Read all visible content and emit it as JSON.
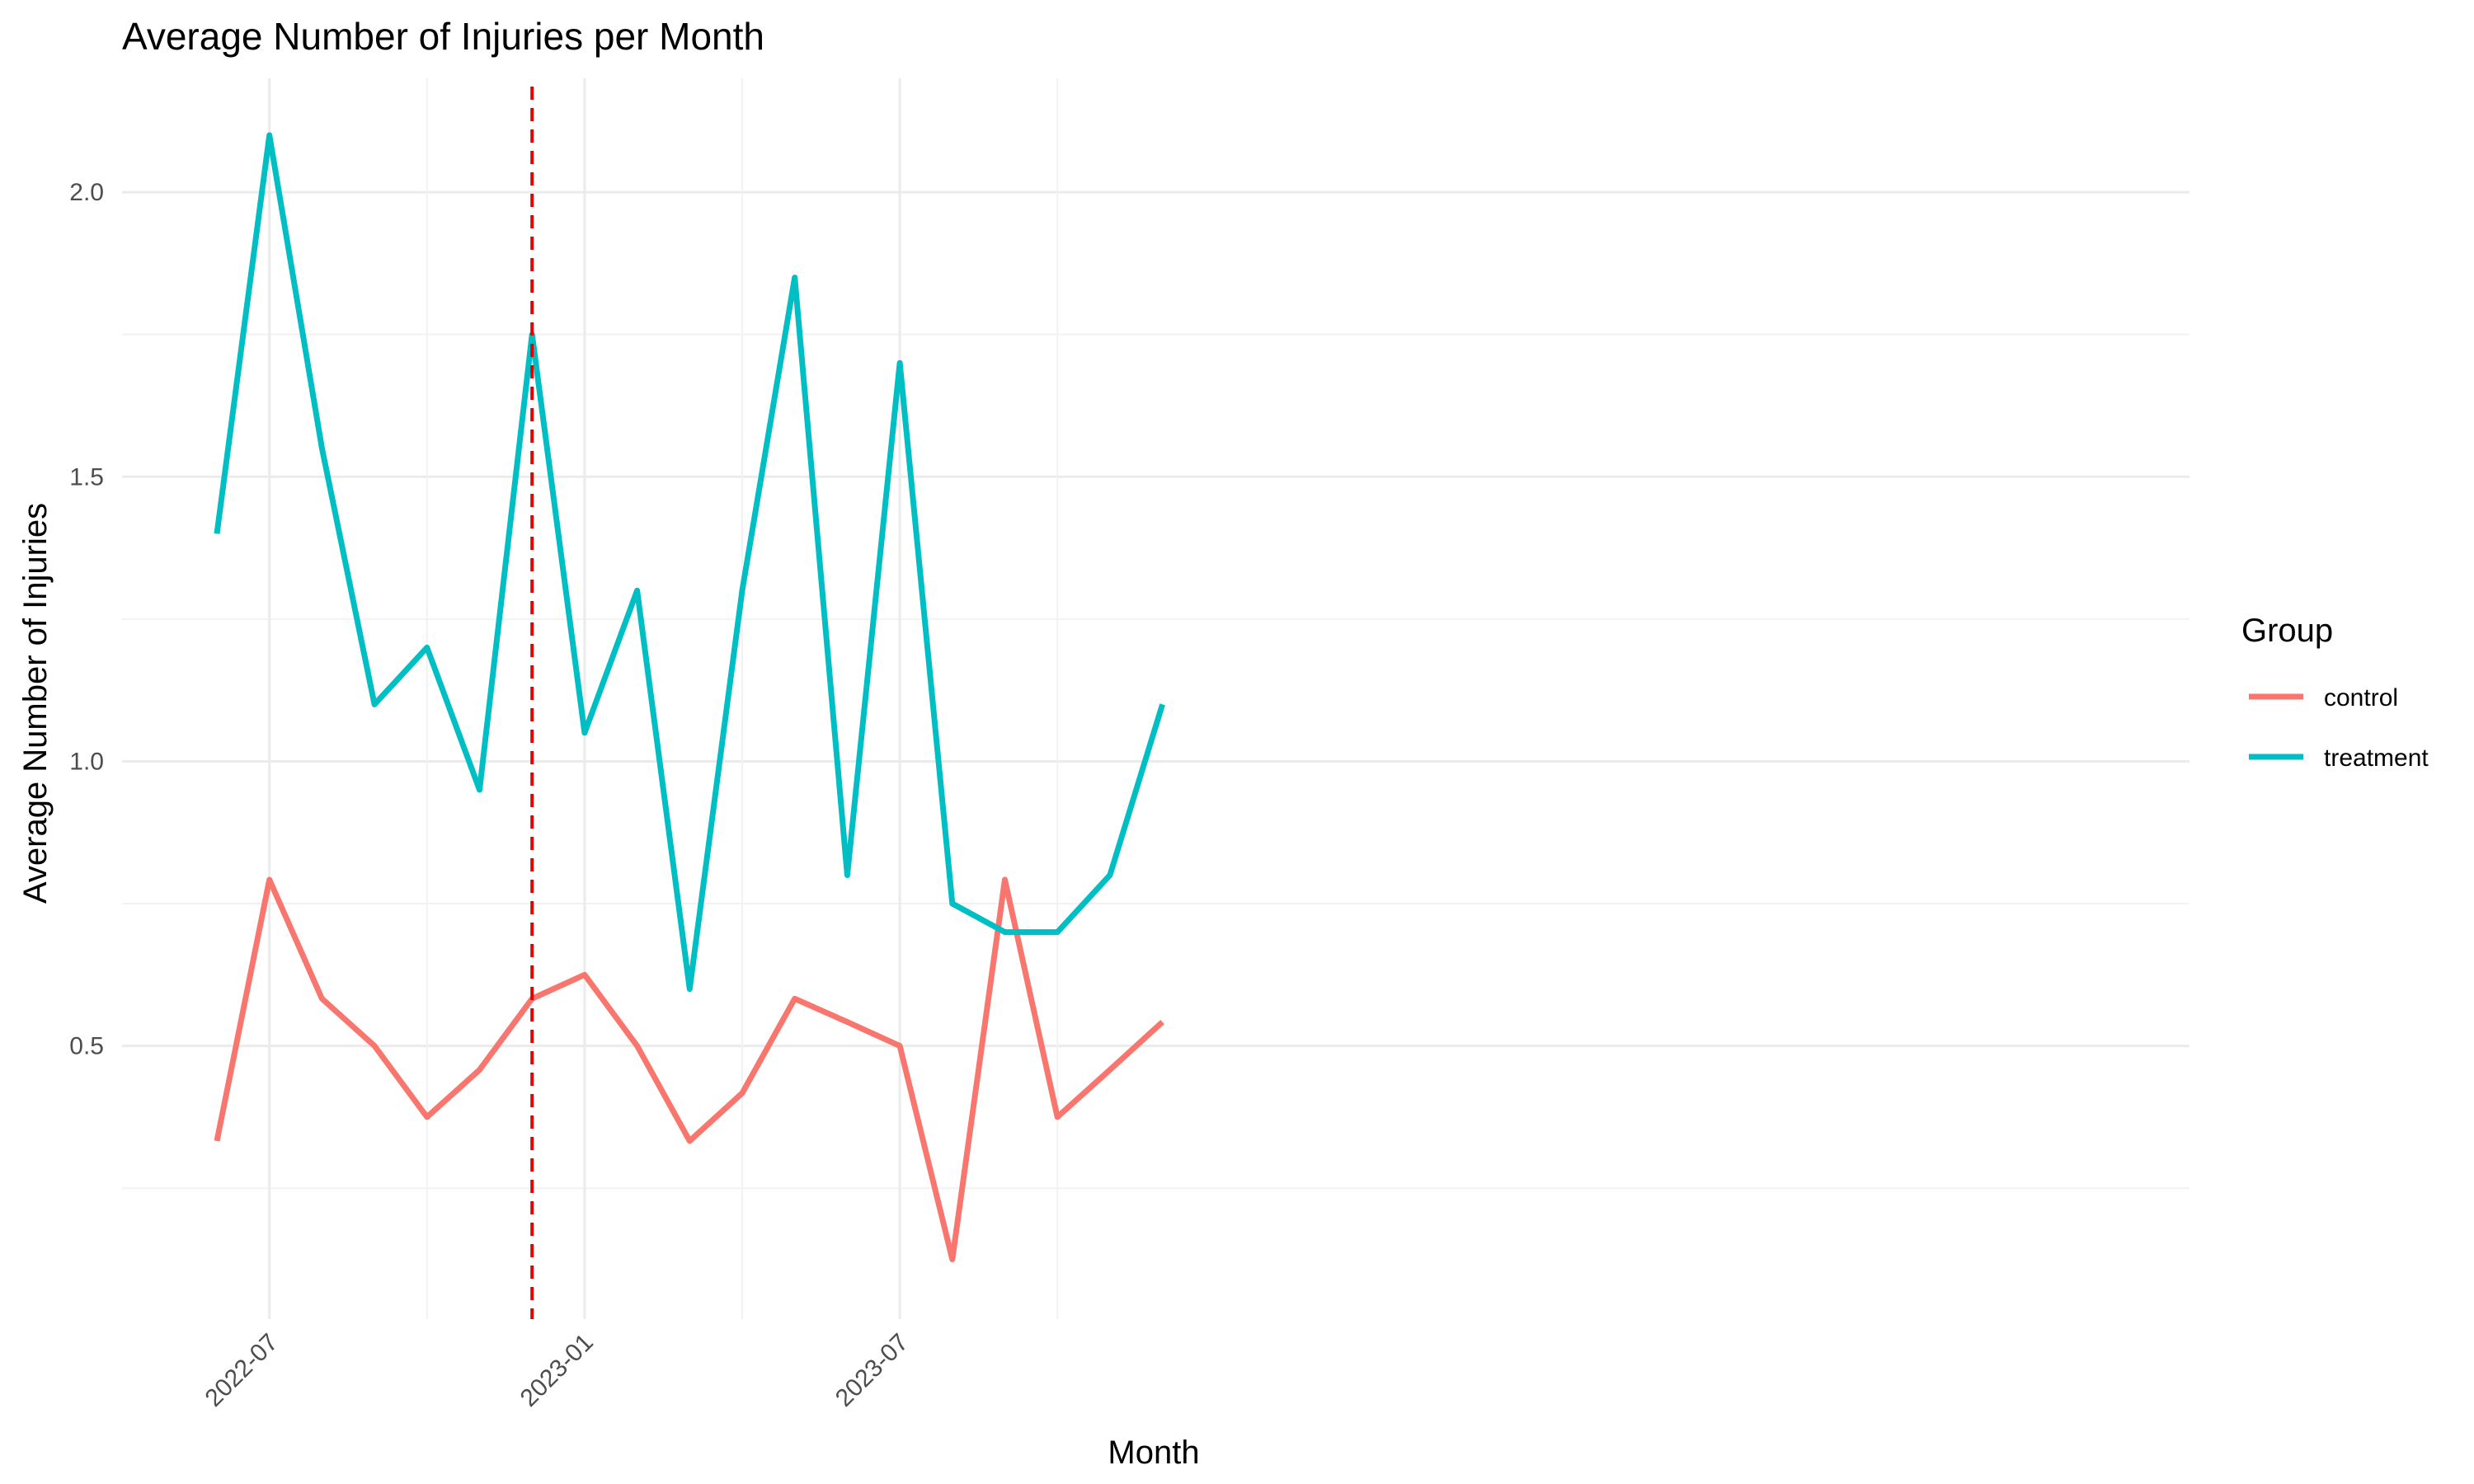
{
  "chart_data": {
    "type": "line",
    "title": "Average Number of Injuries per Month",
    "xlabel": "Month",
    "ylabel": "Average Number of Injuries",
    "x": [
      "2022-06",
      "2022-07",
      "2022-08",
      "2022-09",
      "2022-10",
      "2022-11",
      "2022-12",
      "2023-01",
      "2023-02",
      "2023-03",
      "2023-04",
      "2023-05",
      "2023-06",
      "2023-07",
      "2023-08",
      "2023-09",
      "2023-10",
      "2023-11",
      "2023-12"
    ],
    "x_tick_labels": [
      "2022-07",
      "2023-01",
      "2023-07"
    ],
    "x_tick_values": [
      "2022-07",
      "2023-01",
      "2023-07"
    ],
    "x_minor_gridlines": [
      "2022-10",
      "2023-04",
      "2023-10"
    ],
    "ylim": [
      0.02,
      2.2
    ],
    "y_ticks": [
      0.5,
      1.0,
      1.5,
      2.0
    ],
    "y_tick_labels": [
      "0.5",
      "1.0",
      "1.5",
      "2.0"
    ],
    "grid": true,
    "vline": {
      "x": "2022-12",
      "color": "#e00000",
      "style": "dashed"
    },
    "legend": {
      "title": "Group",
      "position": "right"
    },
    "series": [
      {
        "name": "control",
        "color": "#f8766d",
        "values": [
          0.333,
          0.792,
          0.583,
          0.5,
          0.375,
          0.458,
          0.583,
          0.625,
          0.5,
          0.333,
          0.417,
          0.583,
          0.542,
          0.5,
          0.125,
          0.792,
          0.375,
          0.458,
          0.542
        ]
      },
      {
        "name": "treatment",
        "color": "#00bfc4",
        "values": [
          1.4,
          2.1,
          1.55,
          1.1,
          1.2,
          0.95,
          1.75,
          1.05,
          1.3,
          0.6,
          1.3,
          1.85,
          0.8,
          1.7,
          0.75,
          0.7,
          0.7,
          0.8,
          1.1
        ]
      }
    ]
  }
}
